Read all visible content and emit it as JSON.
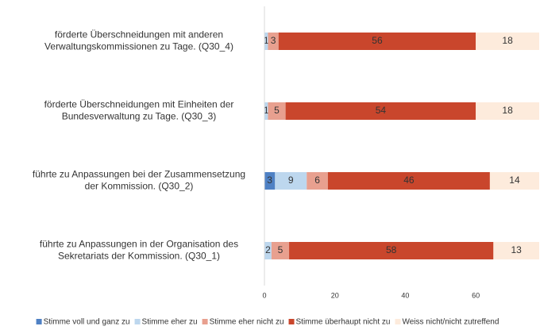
{
  "chart_data": {
    "type": "stacked-bar-horizontal",
    "categories": [
      [
        "förderte Überschneidungen mit anderen",
        "Verwaltungskommissionen zu Tage. (Q30_4)"
      ],
      [
        "förderte Überschneidungen mit Einheiten der",
        "Bundesverwaltung zu Tage. (Q30_3)"
      ],
      [
        "führte zu Anpassungen bei der Zusammensetzung",
        "der Kommission. (Q30_2)"
      ],
      [
        "führte zu Anpassungen in der Organisation des",
        "Sekretariats der Kommission. (Q30_1)"
      ]
    ],
    "series": [
      {
        "name": "Stimme voll und ganz zu",
        "color": "#4f81c4",
        "values": [
          0,
          0,
          3,
          0
        ]
      },
      {
        "name": "Stimme eher zu",
        "color": "#bdd7ee",
        "values": [
          1,
          1,
          9,
          2
        ]
      },
      {
        "name": "Stimme eher nicht zu",
        "color": "#e8a08f",
        "values": [
          3,
          5,
          6,
          5
        ]
      },
      {
        "name": "Stimme überhaupt nicht zu",
        "color": "#c9462c",
        "values": [
          56,
          54,
          46,
          58
        ]
      },
      {
        "name": "Weiss nicht/nicht zutreffend",
        "color": "#fdebdc",
        "values": [
          18,
          18,
          14,
          13
        ]
      }
    ],
    "xlim": [
      0,
      78
    ],
    "xticks": [
      0,
      20,
      40,
      60
    ]
  }
}
